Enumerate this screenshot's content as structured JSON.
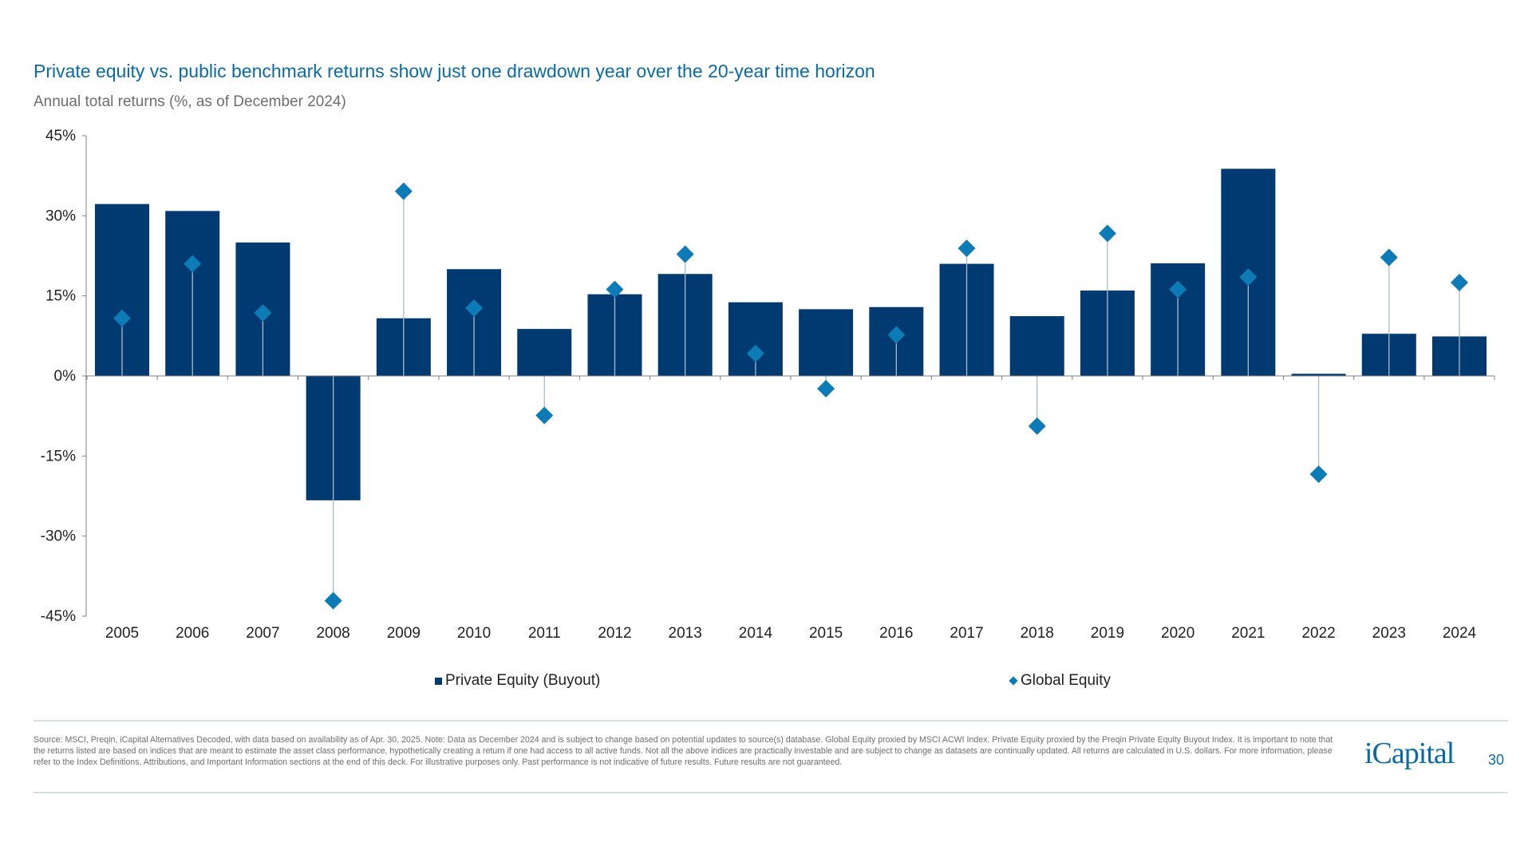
{
  "title": "Private equity vs. public benchmark returns show just one drawdown year over the 20-year time horizon",
  "subtitle": "Annual total returns (%, as of December 2024)",
  "chart_data": {
    "type": "bar",
    "categories": [
      "2005",
      "2006",
      "2007",
      "2008",
      "2009",
      "2010",
      "2011",
      "2012",
      "2013",
      "2014",
      "2015",
      "2016",
      "2017",
      "2018",
      "2019",
      "2020",
      "2021",
      "2022",
      "2023",
      "2024"
    ],
    "series": [
      {
        "name": "Private Equity (Buyout)",
        "type": "bar",
        "color": "#003a70",
        "values": [
          32.2,
          30.9,
          25.0,
          -23.3,
          10.8,
          20.0,
          8.8,
          15.3,
          19.1,
          13.8,
          12.5,
          12.9,
          21.0,
          11.2,
          16.0,
          21.1,
          38.8,
          0.4,
          7.9,
          7.4
        ]
      },
      {
        "name": "Global Equity",
        "type": "scatter",
        "marker": "diamond",
        "color": "#0d7bb5",
        "values": [
          10.8,
          21.0,
          11.8,
          -42.1,
          34.6,
          12.7,
          -7.4,
          16.2,
          22.8,
          4.2,
          -2.4,
          7.7,
          23.9,
          -9.4,
          26.7,
          16.2,
          18.5,
          -18.4,
          22.2,
          17.5
        ]
      }
    ],
    "ylim": [
      -45,
      45
    ],
    "yticks": [
      45,
      30,
      15,
      0,
      -15,
      -30,
      -45
    ],
    "ytick_labels": [
      "45%",
      "30%",
      "15%",
      "0%",
      "-15%",
      "-30%",
      "-45%"
    ],
    "grid": false,
    "legend_position": "bottom"
  },
  "legend": {
    "pe": "Private Equity (Buyout)",
    "ge": "Global Equity"
  },
  "footer": {
    "source": "Source: MSCI, Preqin, iCapital Alternatives Decoded, with data based on availability as of Apr. 30, 2025. Note: Data as December 2024 and is subject to change based on potential updates to source(s) database. Global Equity proxied by MSCI ACWI Index. Private Equity proxied by the Preqin Private Equity Buyout Index. It is important to note that the returns listed are based on indices that are meant to estimate the asset class performance, hypothetically creating a return if one had access to all active funds. Not all the above indices are practically investable and are subject to change as datasets are continually updated. All returns are calculated in U.S. dollars. For more information, please refer to the Index Definitions, Attributions, and Important Information sections at the end of this deck. For illustrative purposes only. Past performance is not indicative of future results. Future results are not guaranteed.",
    "logo": "iCapital",
    "page": "30"
  }
}
